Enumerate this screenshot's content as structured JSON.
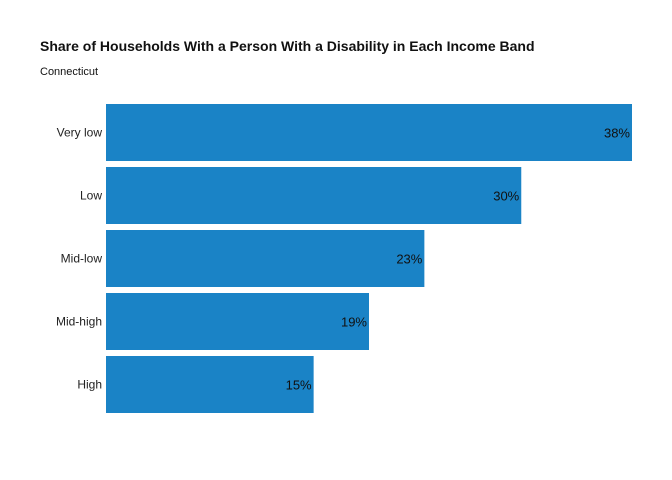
{
  "chart_data": {
    "type": "bar",
    "orientation": "horizontal",
    "title": "Share of Households With a Person With a Disability in Each Income Band",
    "subtitle": "Connecticut",
    "categories": [
      "Very low",
      "Low",
      "Mid-low",
      "Mid-high",
      "High"
    ],
    "values": [
      38,
      30,
      23,
      19,
      15
    ],
    "value_labels": [
      "38%",
      "30%",
      "23%",
      "19%",
      "15%"
    ],
    "xlim": [
      0,
      38
    ],
    "grid": false,
    "legend": "none",
    "bar_color": "#1a83c6"
  }
}
